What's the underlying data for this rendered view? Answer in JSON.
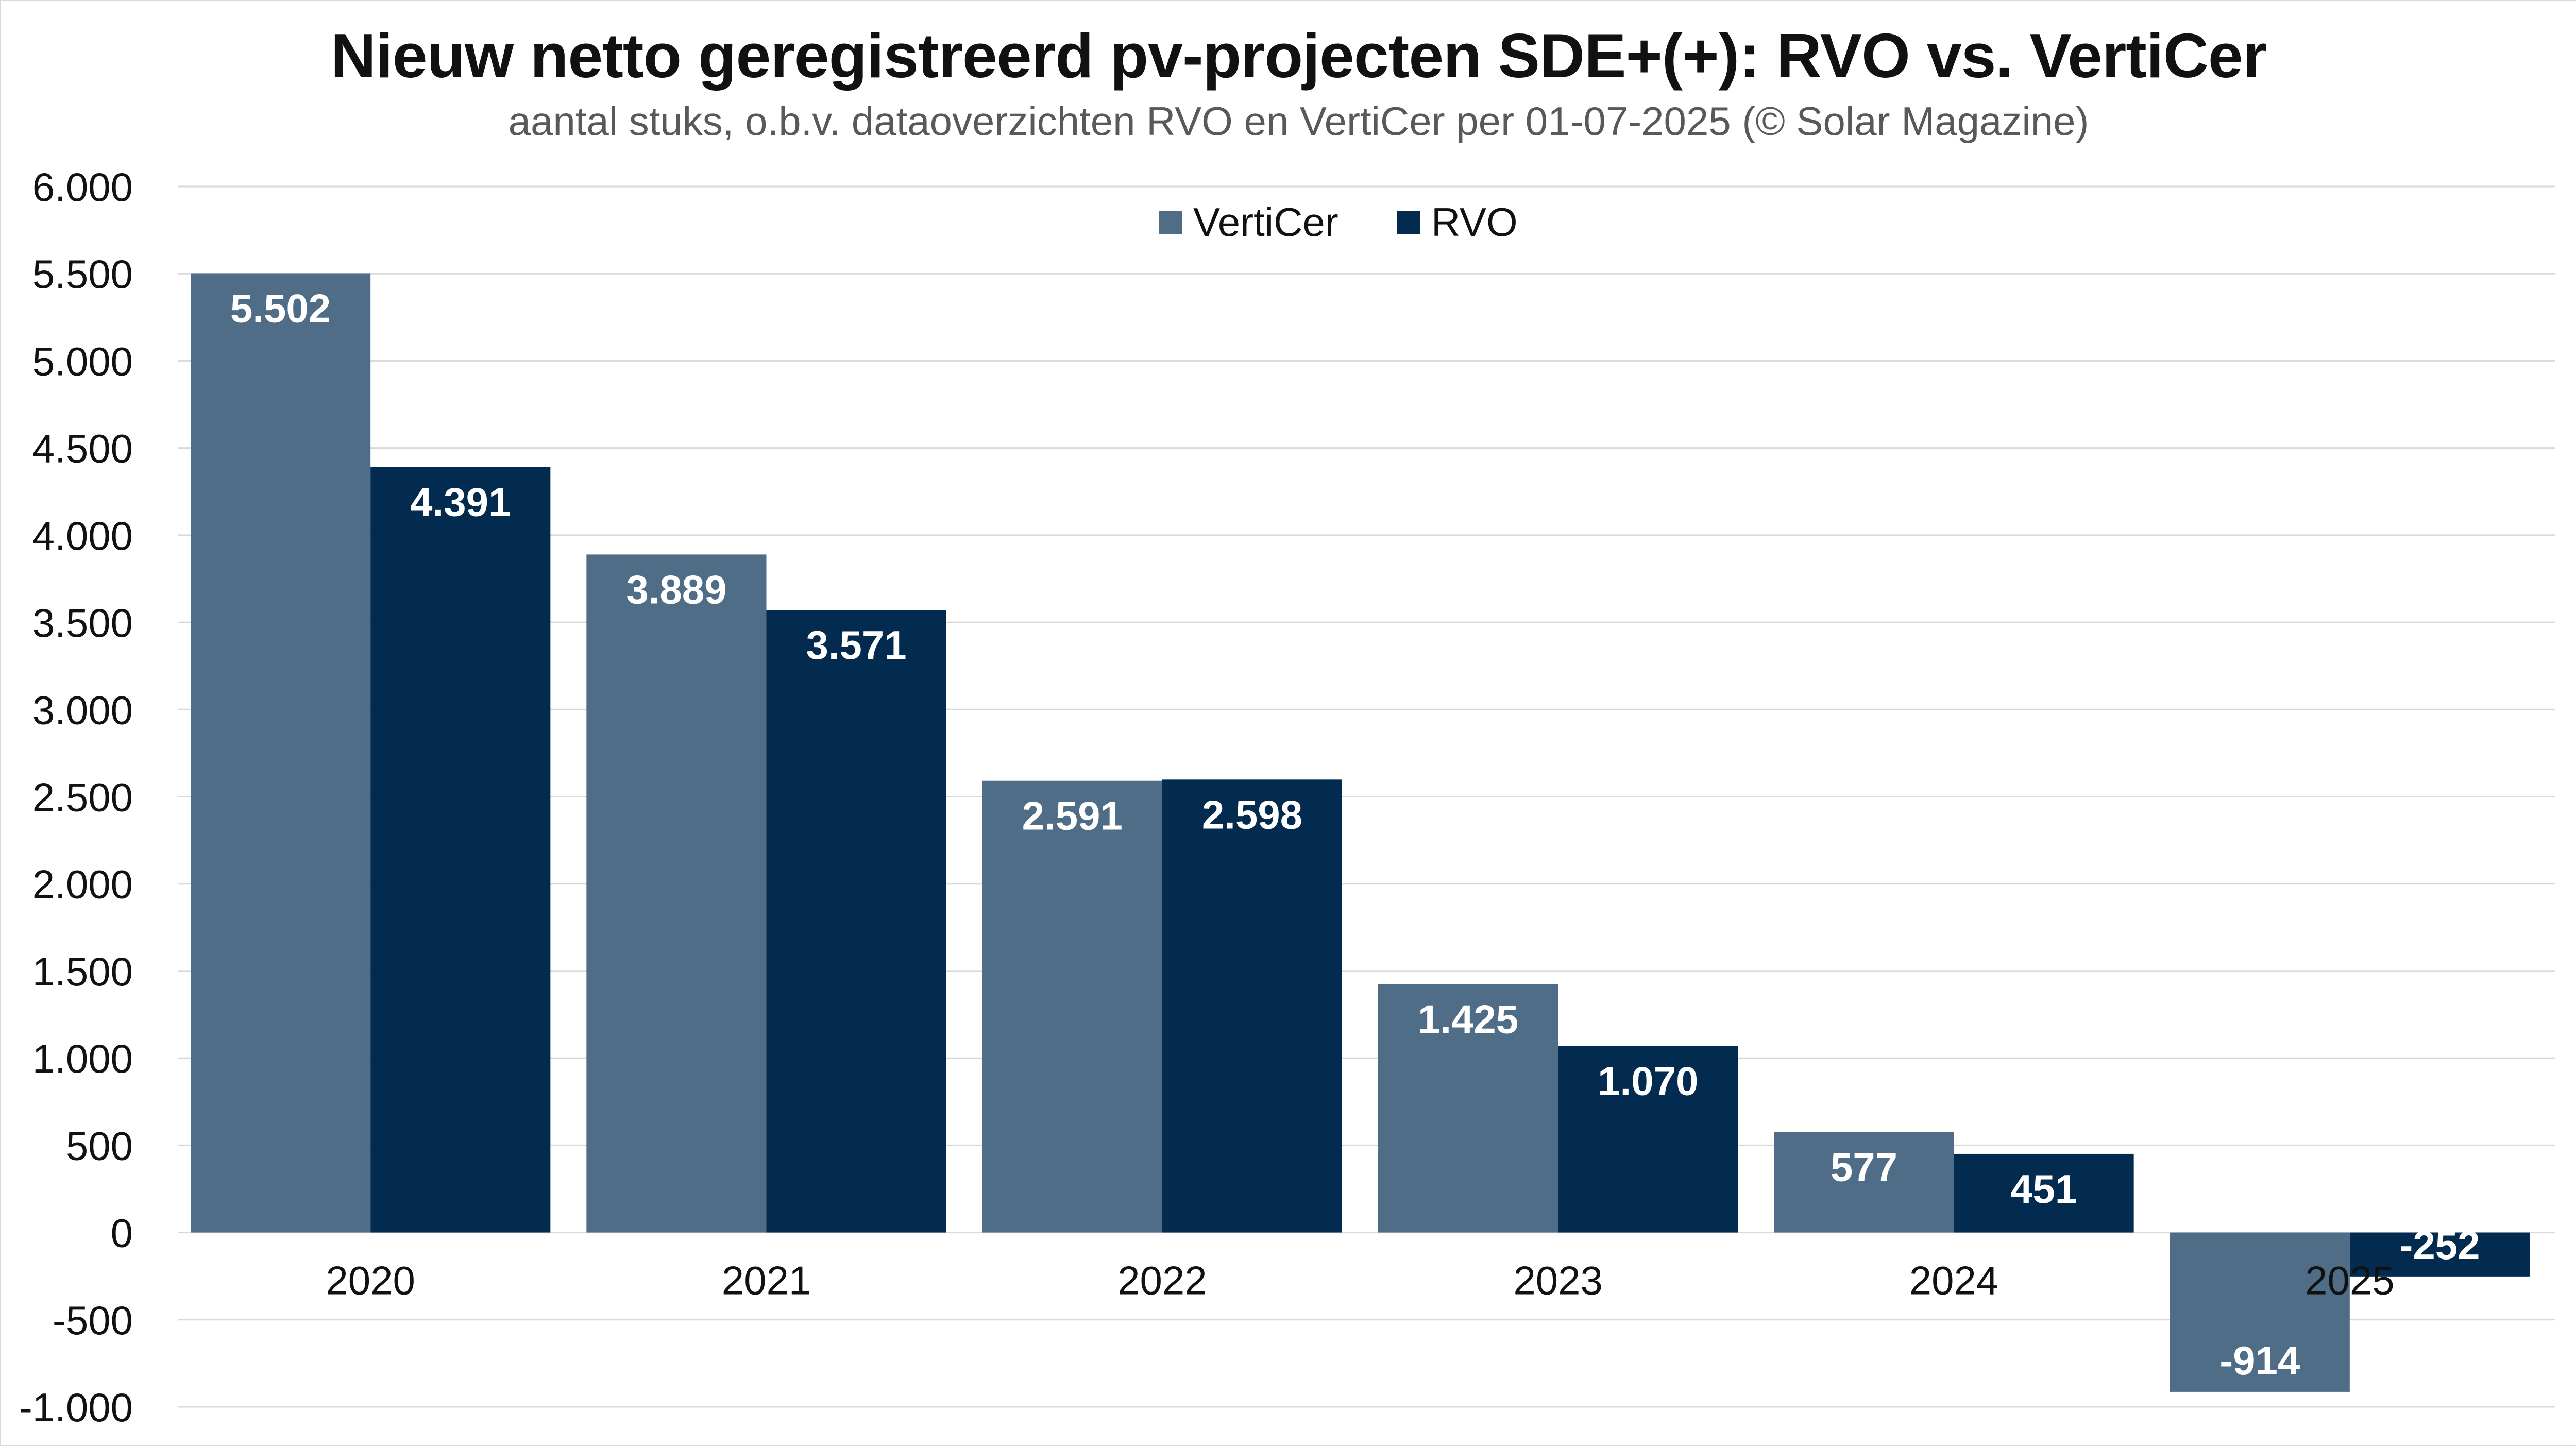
{
  "title": "Nieuw netto geregistreerd pv-projecten SDE+(+): RVO vs. VertiCer",
  "subtitle": "aantal stuks, o.b.v. dataoverzichten RVO en VertiCer per 01-07-2025 (© Solar Magazine)",
  "chart_data": {
    "type": "bar",
    "categories": [
      "2020",
      "2021",
      "2022",
      "2023",
      "2024",
      "2025"
    ],
    "series": [
      {
        "name": "VertiCer",
        "color": "#4f6d87",
        "values": [
          5502,
          3889,
          2591,
          1425,
          577,
          -914
        ],
        "labels": [
          "5.502",
          "3.889",
          "2.591",
          "1.425",
          "577",
          "-914"
        ]
      },
      {
        "name": "RVO",
        "color": "#032b4f",
        "values": [
          4391,
          3571,
          2598,
          1070,
          451,
          -252
        ],
        "labels": [
          "4.391",
          "3.571",
          "2.598",
          "1.070",
          "451",
          "-252"
        ]
      }
    ],
    "ylim": [
      -1000,
      6000
    ],
    "yticks": [
      6000,
      5500,
      5000,
      4500,
      4000,
      3500,
      3000,
      2500,
      2000,
      1500,
      1000,
      500,
      0,
      -500,
      -1000
    ],
    "ytick_labels": [
      "6.000",
      "5.500",
      "5.000",
      "4.500",
      "4.000",
      "3.500",
      "3.000",
      "2.500",
      "2.000",
      "1.500",
      "1.000",
      "500",
      "0",
      "-500",
      "-1.000"
    ],
    "grid": true,
    "legend": "top-center",
    "gridline_color": "#d9d9d9"
  }
}
